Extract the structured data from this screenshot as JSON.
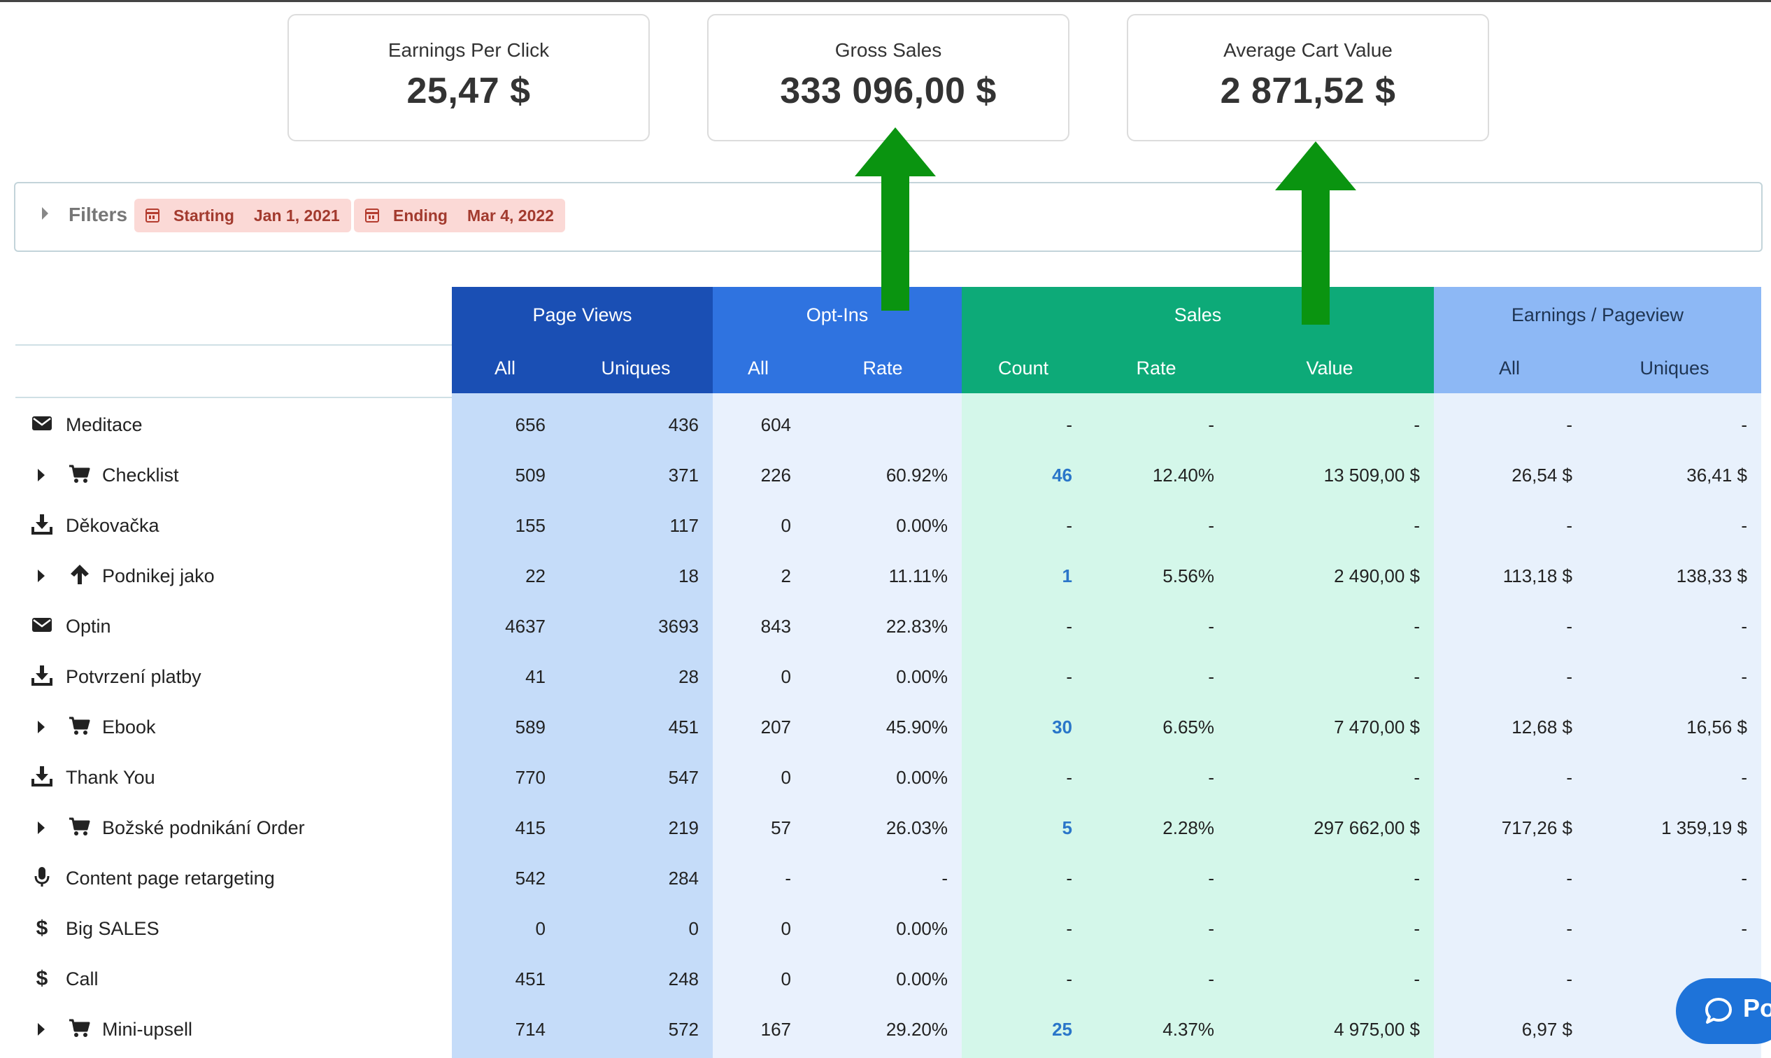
{
  "kpis": [
    {
      "label": "Earnings Per Click",
      "value": "25,47 $"
    },
    {
      "label": "Gross Sales",
      "value": "333 096,00 $"
    },
    {
      "label": "Average Cart Value",
      "value": "2 871,52 $"
    }
  ],
  "filters": {
    "label": "Filters",
    "starting_label": "Starting",
    "starting_date": "Jan 1, 2021",
    "ending_label": "Ending",
    "ending_date": "Mar 4, 2022"
  },
  "table": {
    "groups": {
      "page_views": "Page Views",
      "opt_ins": "Opt-Ins",
      "sales": "Sales",
      "earnings": "Earnings / Pageview"
    },
    "subheaders": {
      "pv_all": "All",
      "pv_uniques": "Uniques",
      "oi_all": "All",
      "oi_rate": "Rate",
      "s_count": "Count",
      "s_rate": "Rate",
      "s_value": "Value",
      "e_all": "All",
      "e_uniques": "Uniques"
    },
    "colors": {
      "page_views_header": "#1a4fb4",
      "opt_ins_header": "#2f73e0",
      "sales_header": "#0daa78",
      "earnings_header": "#8db8f5"
    },
    "rows": [
      {
        "name": "Meditace",
        "icon": "envelope-icon",
        "expandable": false,
        "pv_all": "656",
        "pv_uniques": "436",
        "oi_all": "604",
        "oi_rate": "",
        "s_count": "-",
        "s_rate": "-",
        "s_value": "-",
        "e_all": "-",
        "e_uniques": "-"
      },
      {
        "name": "Checklist",
        "icon": "cart-icon",
        "expandable": true,
        "pv_all": "509",
        "pv_uniques": "371",
        "oi_all": "226",
        "oi_rate": "60.92%",
        "s_count": "46",
        "s_rate": "12.40%",
        "s_value": "13 509,00 $",
        "e_all": "26,54 $",
        "e_uniques": "36,41 $"
      },
      {
        "name": "Děkovačka",
        "icon": "download-icon",
        "expandable": false,
        "pv_all": "155",
        "pv_uniques": "117",
        "oi_all": "0",
        "oi_rate": "0.00%",
        "s_count": "-",
        "s_rate": "-",
        "s_value": "-",
        "e_all": "-",
        "e_uniques": "-"
      },
      {
        "name": "Podnikej jako",
        "icon": "arrow-up-icon",
        "expandable": true,
        "pv_all": "22",
        "pv_uniques": "18",
        "oi_all": "2",
        "oi_rate": "11.11%",
        "s_count": "1",
        "s_rate": "5.56%",
        "s_value": "2 490,00 $",
        "e_all": "113,18 $",
        "e_uniques": "138,33 $"
      },
      {
        "name": "Optin",
        "icon": "envelope-icon",
        "expandable": false,
        "pv_all": "4637",
        "pv_uniques": "3693",
        "oi_all": "843",
        "oi_rate": "22.83%",
        "s_count": "-",
        "s_rate": "-",
        "s_value": "-",
        "e_all": "-",
        "e_uniques": "-"
      },
      {
        "name": "Potvrzení platby",
        "icon": "download-icon",
        "expandable": false,
        "pv_all": "41",
        "pv_uniques": "28",
        "oi_all": "0",
        "oi_rate": "0.00%",
        "s_count": "-",
        "s_rate": "-",
        "s_value": "-",
        "e_all": "-",
        "e_uniques": "-"
      },
      {
        "name": "Ebook",
        "icon": "cart-icon",
        "expandable": true,
        "pv_all": "589",
        "pv_uniques": "451",
        "oi_all": "207",
        "oi_rate": "45.90%",
        "s_count": "30",
        "s_rate": "6.65%",
        "s_value": "7 470,00 $",
        "e_all": "12,68 $",
        "e_uniques": "16,56 $"
      },
      {
        "name": "Thank You",
        "icon": "download-icon",
        "expandable": false,
        "pv_all": "770",
        "pv_uniques": "547",
        "oi_all": "0",
        "oi_rate": "0.00%",
        "s_count": "-",
        "s_rate": "-",
        "s_value": "-",
        "e_all": "-",
        "e_uniques": "-"
      },
      {
        "name": "Božské podnikání Order",
        "icon": "cart-icon",
        "expandable": true,
        "pv_all": "415",
        "pv_uniques": "219",
        "oi_all": "57",
        "oi_rate": "26.03%",
        "s_count": "5",
        "s_rate": "2.28%",
        "s_value": "297 662,00 $",
        "e_all": "717,26 $",
        "e_uniques": "1 359,19 $"
      },
      {
        "name": "Content page retargeting",
        "icon": "microphone-icon",
        "expandable": false,
        "pv_all": "542",
        "pv_uniques": "284",
        "oi_all": "-",
        "oi_rate": "-",
        "s_count": "-",
        "s_rate": "-",
        "s_value": "-",
        "e_all": "-",
        "e_uniques": "-"
      },
      {
        "name": "Big SALES",
        "icon": "dollar-icon",
        "expandable": false,
        "pv_all": "0",
        "pv_uniques": "0",
        "oi_all": "0",
        "oi_rate": "0.00%",
        "s_count": "-",
        "s_rate": "-",
        "s_value": "-",
        "e_all": "-",
        "e_uniques": "-"
      },
      {
        "name": "Call",
        "icon": "dollar-icon",
        "expandable": false,
        "pv_all": "451",
        "pv_uniques": "248",
        "oi_all": "0",
        "oi_rate": "0.00%",
        "s_count": "-",
        "s_rate": "-",
        "s_value": "-",
        "e_all": "-",
        "e_uniques": "-"
      },
      {
        "name": "Mini-upsell",
        "icon": "cart-icon",
        "expandable": true,
        "pv_all": "714",
        "pv_uniques": "572",
        "oi_all": "167",
        "oi_rate": "29.20%",
        "s_count": "25",
        "s_rate": "4.37%",
        "s_value": "4 975,00 $",
        "e_all": "6,97 $",
        "e_uniques": ""
      }
    ]
  },
  "chat": {
    "label": "Po",
    "icon": "chat-bubble-icon"
  },
  "annotations": {
    "arrow_color": "#0a9410"
  }
}
